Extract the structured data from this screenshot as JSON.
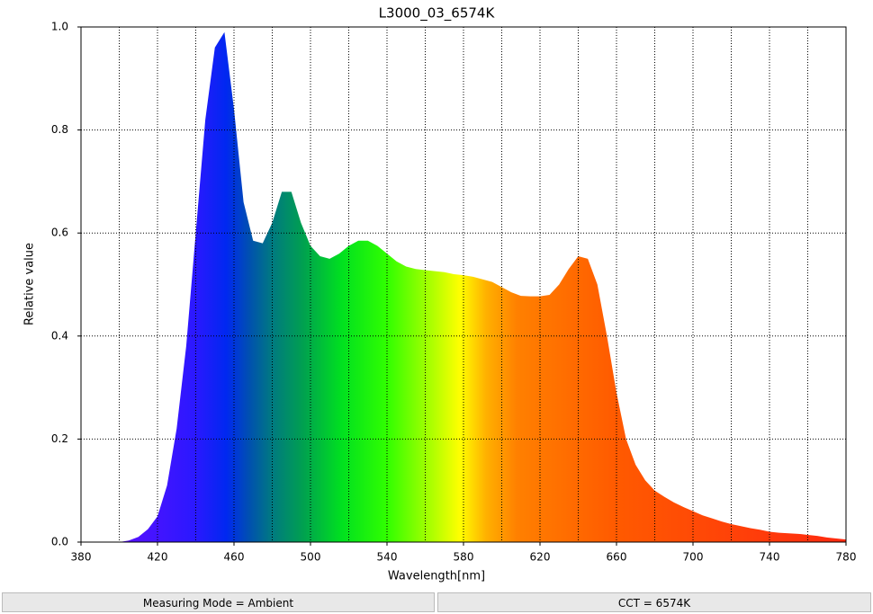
{
  "chart_data": {
    "type": "area",
    "title": "L3000_03_6574K",
    "xlabel": "Wavelength[nm]",
    "ylabel": "Relative value",
    "x": [
      380,
      385,
      390,
      395,
      400,
      405,
      410,
      415,
      420,
      425,
      430,
      435,
      440,
      445,
      450,
      455,
      460,
      465,
      470,
      475,
      480,
      485,
      490,
      495,
      500,
      505,
      510,
      515,
      520,
      525,
      530,
      535,
      540,
      545,
      550,
      555,
      560,
      565,
      570,
      575,
      580,
      585,
      590,
      595,
      600,
      605,
      610,
      615,
      620,
      625,
      630,
      635,
      640,
      645,
      650,
      655,
      660,
      665,
      670,
      675,
      680,
      685,
      690,
      695,
      700,
      705,
      710,
      715,
      720,
      725,
      730,
      735,
      740,
      745,
      750,
      755,
      760,
      765,
      770,
      775,
      780
    ],
    "values": [
      0,
      0,
      0,
      0,
      0,
      0.003,
      0.01,
      0.025,
      0.05,
      0.11,
      0.22,
      0.38,
      0.6,
      0.82,
      0.96,
      0.99,
      0.84,
      0.66,
      0.585,
      0.58,
      0.62,
      0.68,
      0.68,
      0.62,
      0.575,
      0.555,
      0.55,
      0.56,
      0.575,
      0.585,
      0.585,
      0.575,
      0.56,
      0.545,
      0.535,
      0.53,
      0.528,
      0.526,
      0.524,
      0.52,
      0.518,
      0.515,
      0.51,
      0.505,
      0.495,
      0.485,
      0.478,
      0.477,
      0.477,
      0.48,
      0.5,
      0.53,
      0.555,
      0.55,
      0.5,
      0.4,
      0.29,
      0.2,
      0.15,
      0.12,
      0.1,
      0.088,
      0.077,
      0.068,
      0.06,
      0.052,
      0.046,
      0.04,
      0.035,
      0.031,
      0.027,
      0.024,
      0.02,
      0.018,
      0.017,
      0.016,
      0.014,
      0.012,
      0.009,
      0.007,
      0.005
    ],
    "xlim": [
      380,
      780
    ],
    "xticks": [
      380,
      420,
      460,
      500,
      540,
      580,
      620,
      660,
      700,
      740,
      780
    ],
    "xgrid": [
      400,
      420,
      440,
      460,
      480,
      500,
      520,
      540,
      560,
      580,
      600,
      620,
      640,
      660,
      680,
      700,
      720,
      740,
      760
    ],
    "ylim": [
      0,
      1
    ],
    "yticks": [
      {
        "value": 0,
        "label": "0.0"
      },
      0.2,
      0.4,
      0.6,
      0.8,
      {
        "value": 1,
        "label": "1.0"
      }
    ],
    "grid": true
  },
  "footer": {
    "mode": "Measuring Mode = Ambient",
    "cct": "CCT = 6574K"
  }
}
